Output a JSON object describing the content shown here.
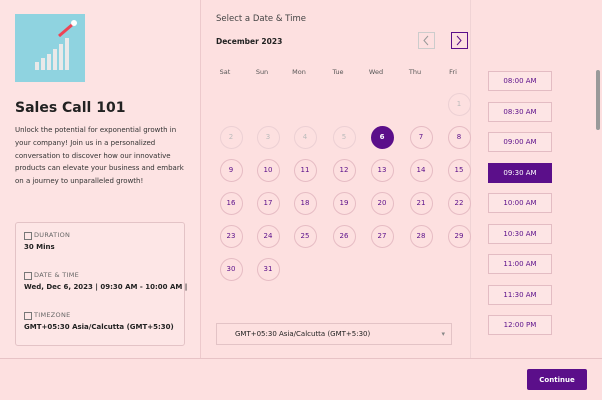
{
  "event": {
    "title": "Sales Call 101",
    "description": "Unlock the potential for exponential growth in your company! Join us in a personalized conversation to discover how our innovative products can elevate your business and embark on a journey to unparalleled growth!",
    "details": [
      {
        "label": "DURATION",
        "value": "30 Mins"
      },
      {
        "label": "DATE & TIME",
        "value": "Wed, Dec 6, 2023 | 09:30 AM - 10:00 AM |"
      },
      {
        "label": "TIMEZONE",
        "value": "GMT+05:30 Asia/Calcutta (GMT+5:30)"
      }
    ]
  },
  "scheduler": {
    "heading": "Select a Date & Time",
    "month": "December 2023",
    "weekdays": [
      "Sat",
      "Sun",
      "Mon",
      "Tue",
      "Wed",
      "Thu",
      "Fri"
    ],
    "days": [
      "1",
      "2",
      "3",
      "4",
      "5",
      "6",
      "7",
      "8",
      "9",
      "10",
      "11",
      "12",
      "13",
      "14",
      "15",
      "16",
      "17",
      "18",
      "19",
      "20",
      "21",
      "22",
      "23",
      "24",
      "25",
      "26",
      "27",
      "28",
      "29",
      "30",
      "31"
    ],
    "timezone": "GMT+05:30 Asia/Calcutta (GMT+5:30)",
    "times": [
      "08:00 AM",
      "08:30 AM",
      "09:00 AM",
      "09:30 AM",
      "10:00 AM",
      "10:30 AM",
      "11:00 AM",
      "11:30 AM",
      "12:00 PM"
    ]
  },
  "footer": {
    "button": "Continue"
  }
}
